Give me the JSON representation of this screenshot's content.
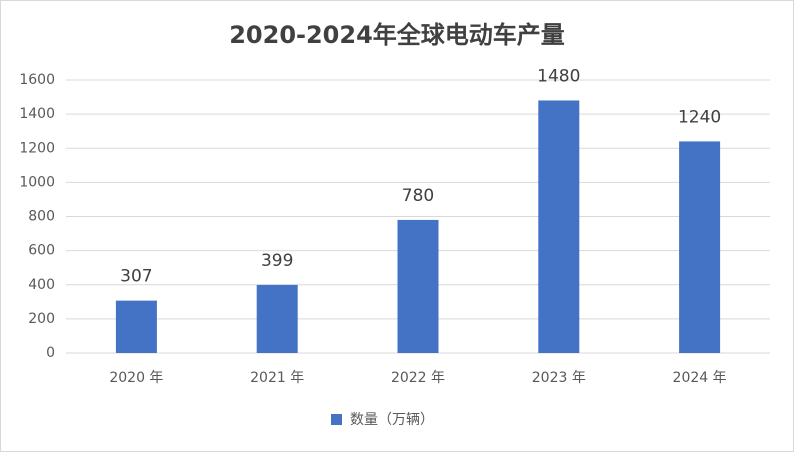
{
  "chart_data": {
    "type": "bar",
    "title": "2020-2024年全球电动车产量",
    "categories": [
      "2020 年",
      "2021 年",
      "2022 年",
      "2023 年",
      "2024 年"
    ],
    "series": [
      {
        "name": "数量（万辆）",
        "color": "#4472c4",
        "values": [
          307,
          399,
          780,
          1480,
          1240
        ]
      }
    ],
    "ylim": [
      0,
      1600
    ],
    "yticks": [
      0,
      200,
      400,
      600,
      800,
      1000,
      1200,
      1400,
      1600
    ],
    "grid": true,
    "legend": "bottom",
    "data_labels": true
  }
}
